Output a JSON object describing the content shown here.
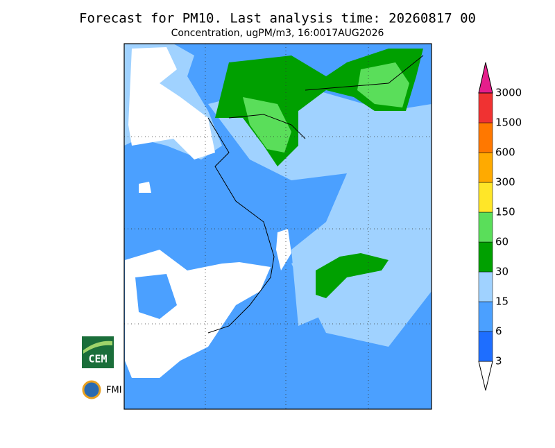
{
  "title": "Forecast for PM10. Last analysis time: 20260817 00",
  "subtitle": "Concentration, ugPM/m3, 16:0017AUG2026",
  "legend": {
    "levels": [
      3,
      6,
      15,
      30,
      60,
      150,
      300,
      600,
      1500,
      3000
    ],
    "colors": [
      "#ffffff",
      "#1e6eff",
      "#4ba0ff",
      "#a0d2ff",
      "#00a000",
      "#5ade5a",
      "#ffe628",
      "#ffaa00",
      "#ff7800",
      "#f03232",
      "#e61e8c"
    ]
  },
  "logos": [
    "CEM",
    "FMI"
  ]
}
